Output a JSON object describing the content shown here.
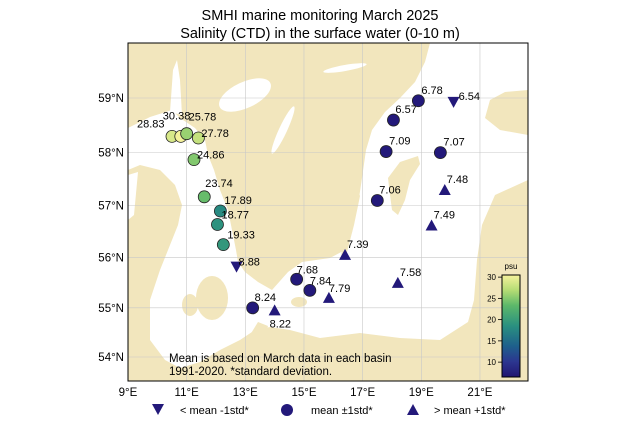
{
  "chart_data": {
    "type": "scatter",
    "title": [
      "SMHI marine monitoring March 2025",
      "Salinity (CTD) in the surface water (0-10 m)"
    ],
    "xlim": [
      9,
      22.7
    ],
    "ylim": [
      53.55,
      60.05
    ],
    "x_ticks": [
      9,
      11,
      13,
      15,
      17,
      19,
      21
    ],
    "x_tick_labels": [
      "9°E",
      "11°E",
      "13°E",
      "15°E",
      "17°E",
      "19°E",
      "21°E"
    ],
    "y_ticks": [
      54,
      55,
      56,
      57,
      58,
      59
    ],
    "y_tick_labels": [
      "54°N",
      "55°N",
      "56°N",
      "57°N",
      "58°N",
      "59°N"
    ],
    "grid": true,
    "colorbar": {
      "label": "psu",
      "range": [
        6.5,
        30.5
      ],
      "ticks": [
        10,
        15,
        20,
        25,
        30
      ],
      "tick_labels": [
        "10",
        "15",
        "20",
        "25",
        "30"
      ]
    },
    "note": [
      "Mean is based on March data in each basin",
      "1991-2020. *standard deviation."
    ],
    "legend": [
      {
        "marker": "triangle-down",
        "label": "< mean -1std*"
      },
      {
        "marker": "circle",
        "label": "mean ±1std*"
      },
      {
        "marker": "triangle-up",
        "label": "> mean +1std*"
      }
    ],
    "stations": [
      {
        "lon": 10.5,
        "lat": 58.3,
        "value": 28.83,
        "label": "28.83",
        "marker": "circle"
      },
      {
        "lon": 10.8,
        "lat": 58.3,
        "value": 30.38,
        "label": "30.38",
        "marker": "circle"
      },
      {
        "lon": 11.0,
        "lat": 58.35,
        "value": 25.78,
        "label": "25.78",
        "marker": "circle"
      },
      {
        "lon": 11.4,
        "lat": 58.27,
        "value": 27.78,
        "label": "27.78",
        "marker": "circle"
      },
      {
        "lon": 11.25,
        "lat": 57.87,
        "value": 24.86,
        "label": "24.86",
        "marker": "circle"
      },
      {
        "lon": 11.6,
        "lat": 57.17,
        "value": 23.74,
        "label": "23.74",
        "marker": "circle"
      },
      {
        "lon": 12.15,
        "lat": 56.9,
        "value": 17.89,
        "label": "17.89",
        "marker": "circle"
      },
      {
        "lon": 12.05,
        "lat": 56.64,
        "value": 18.77,
        "label": "18.77",
        "marker": "circle"
      },
      {
        "lon": 12.25,
        "lat": 56.25,
        "value": 19.33,
        "label": "19.33",
        "marker": "circle"
      },
      {
        "lon": 12.7,
        "lat": 55.82,
        "value": 8.88,
        "label": "8.88",
        "marker": "triangle-down"
      },
      {
        "lon": 14.75,
        "lat": 55.57,
        "value": 7.68,
        "label": "7.68",
        "marker": "circle"
      },
      {
        "lon": 15.2,
        "lat": 55.35,
        "value": 7.84,
        "label": "7.84",
        "marker": "circle"
      },
      {
        "lon": 15.85,
        "lat": 55.2,
        "value": 7.79,
        "label": "7.79",
        "marker": "triangle-up"
      },
      {
        "lon": 13.25,
        "lat": 55.0,
        "value": 8.24,
        "label": "8.24",
        "marker": "circle"
      },
      {
        "lon": 14.0,
        "lat": 54.95,
        "value": 8.22,
        "label": "8.22",
        "marker": "triangle-up"
      },
      {
        "lon": 16.4,
        "lat": 56.05,
        "value": 7.39,
        "label": "7.39",
        "marker": "triangle-up"
      },
      {
        "lon": 18.2,
        "lat": 55.5,
        "value": 7.58,
        "label": "7.58",
        "marker": "triangle-up"
      },
      {
        "lon": 17.5,
        "lat": 57.1,
        "value": 7.06,
        "label": "7.06",
        "marker": "circle"
      },
      {
        "lon": 19.35,
        "lat": 56.62,
        "value": 7.49,
        "label": "7.49",
        "marker": "triangle-up"
      },
      {
        "lon": 19.8,
        "lat": 57.3,
        "value": 7.48,
        "label": "7.48",
        "marker": "triangle-up"
      },
      {
        "lon": 17.8,
        "lat": 58.02,
        "value": 7.09,
        "label": "7.09",
        "marker": "circle"
      },
      {
        "lon": 19.65,
        "lat": 58.0,
        "value": 7.07,
        "label": "7.07",
        "marker": "circle"
      },
      {
        "lon": 18.05,
        "lat": 58.6,
        "value": 6.57,
        "label": "6.57",
        "marker": "circle"
      },
      {
        "lon": 18.9,
        "lat": 58.95,
        "value": 6.78,
        "label": "6.78",
        "marker": "circle"
      },
      {
        "lon": 20.1,
        "lat": 58.93,
        "value": 6.54,
        "label": "6.54",
        "marker": "triangle-down"
      }
    ],
    "colors": {
      "land": "#f2e6bd",
      "sea": "#ffffff",
      "marker_dark": "#23197a",
      "grid": "#c8c8c8"
    }
  }
}
